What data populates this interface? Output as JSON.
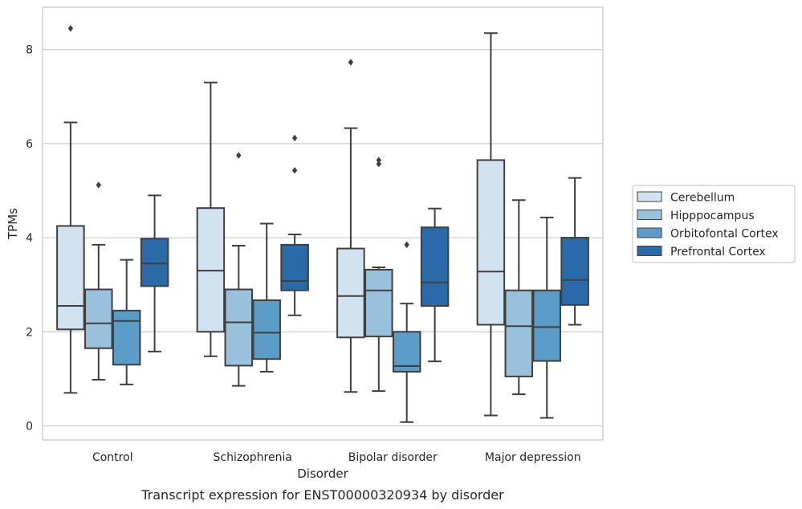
{
  "chart_data": {
    "type": "box",
    "xlabel": "Disorder",
    "ylabel": "TPMs",
    "caption": "Transcript expression for ENST00000320934 by disorder",
    "ylim": [
      -0.3,
      8.9
    ],
    "yticks": [
      0,
      2,
      4,
      6,
      8
    ],
    "grid": "horizontal",
    "legend_position": "right",
    "categories": [
      "Control",
      "Schizophrenia",
      "Bipolar disorder",
      "Major depression"
    ],
    "series": [
      {
        "name": "Cerebellum",
        "color": "#d1e2f1",
        "boxes": [
          {
            "whisker_low": 0.7,
            "q1": 2.05,
            "median": 2.55,
            "q3": 4.25,
            "whisker_high": 6.45,
            "outliers": [
              8.45
            ]
          },
          {
            "whisker_low": 1.48,
            "q1": 2.0,
            "median": 3.3,
            "q3": 4.63,
            "whisker_high": 7.3,
            "outliers": []
          },
          {
            "whisker_low": 0.72,
            "q1": 1.88,
            "median": 2.76,
            "q3": 3.77,
            "whisker_high": 6.33,
            "outliers": [
              7.73
            ]
          },
          {
            "whisker_low": 0.22,
            "q1": 2.15,
            "median": 3.28,
            "q3": 5.65,
            "whisker_high": 8.35,
            "outliers": []
          }
        ]
      },
      {
        "name": "Hipppocampus",
        "color": "#9ac1dc",
        "boxes": [
          {
            "whisker_low": 0.98,
            "q1": 1.65,
            "median": 2.18,
            "q3": 2.9,
            "whisker_high": 3.85,
            "outliers": [
              5.12
            ]
          },
          {
            "whisker_low": 0.85,
            "q1": 1.28,
            "median": 2.2,
            "q3": 2.9,
            "whisker_high": 3.83,
            "outliers": [
              5.75
            ]
          },
          {
            "whisker_low": 0.74,
            "q1": 1.9,
            "median": 2.88,
            "q3": 3.32,
            "whisker_high": 3.37,
            "outliers": [
              5.57,
              5.65
            ]
          },
          {
            "whisker_low": 0.67,
            "q1": 1.05,
            "median": 2.12,
            "q3": 2.88,
            "whisker_high": 4.8,
            "outliers": []
          }
        ]
      },
      {
        "name": "Orbitofontal Cortex",
        "color": "#5b9bc8",
        "boxes": [
          {
            "whisker_low": 0.88,
            "q1": 1.3,
            "median": 2.23,
            "q3": 2.45,
            "whisker_high": 3.53,
            "outliers": []
          },
          {
            "whisker_low": 1.15,
            "q1": 1.42,
            "median": 1.98,
            "q3": 2.67,
            "whisker_high": 4.3,
            "outliers": []
          },
          {
            "whisker_low": 0.08,
            "q1": 1.15,
            "median": 1.27,
            "q3": 2.0,
            "whisker_high": 2.6,
            "outliers": [
              3.85
            ]
          },
          {
            "whisker_low": 0.17,
            "q1": 1.38,
            "median": 2.1,
            "q3": 2.88,
            "whisker_high": 4.43,
            "outliers": []
          }
        ]
      },
      {
        "name": "Prefrontal Cortex",
        "color": "#2a6aa8",
        "boxes": [
          {
            "whisker_low": 1.58,
            "q1": 2.97,
            "median": 3.45,
            "q3": 3.98,
            "whisker_high": 4.9,
            "outliers": []
          },
          {
            "whisker_low": 2.35,
            "q1": 2.88,
            "median": 3.08,
            "q3": 3.85,
            "whisker_high": 4.07,
            "outliers": [
              5.43,
              6.12
            ]
          },
          {
            "whisker_low": 1.37,
            "q1": 2.55,
            "median": 3.05,
            "q3": 4.22,
            "whisker_high": 4.62,
            "outliers": []
          },
          {
            "whisker_low": 2.15,
            "q1": 2.57,
            "median": 3.1,
            "q3": 4.0,
            "whisker_high": 5.27,
            "outliers": []
          }
        ]
      }
    ]
  }
}
